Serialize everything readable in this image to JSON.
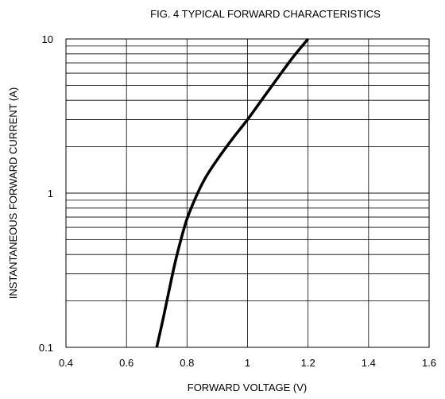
{
  "chart_data": {
    "type": "line",
    "title": "FIG. 4 TYPICAL FORWARD CHARACTERISTICS",
    "xlabel": "FORWARD VOLTAGE (V)",
    "ylabel": "INSTANTANEOUS FORWARD CURRENT (A)",
    "xlim": [
      0.4,
      1.6
    ],
    "ylim": [
      0.1,
      10
    ],
    "yscale": "log",
    "grid": true,
    "x_ticks": [
      0.4,
      0.6,
      0.8,
      1.0,
      1.2,
      1.4,
      1.6
    ],
    "x_tick_labels": [
      "0.4",
      "0.6",
      "0.8",
      "1",
      "1.2",
      "1.4",
      "1.6"
    ],
    "y_ticks": [
      0.1,
      1,
      10
    ],
    "y_tick_labels": [
      "0.1",
      "1",
      "10"
    ],
    "line_color": "#000000",
    "series": [
      {
        "x": [
          0.7,
          0.72,
          0.74,
          0.76,
          0.78,
          0.8,
          0.83,
          0.86,
          0.9,
          0.95,
          1.0,
          1.05,
          1.1,
          1.15,
          1.2
        ],
        "y": [
          0.1,
          0.15,
          0.23,
          0.35,
          0.5,
          0.68,
          0.95,
          1.25,
          1.65,
          2.25,
          3.0,
          4.1,
          5.6,
          7.6,
          10.0
        ]
      }
    ]
  }
}
